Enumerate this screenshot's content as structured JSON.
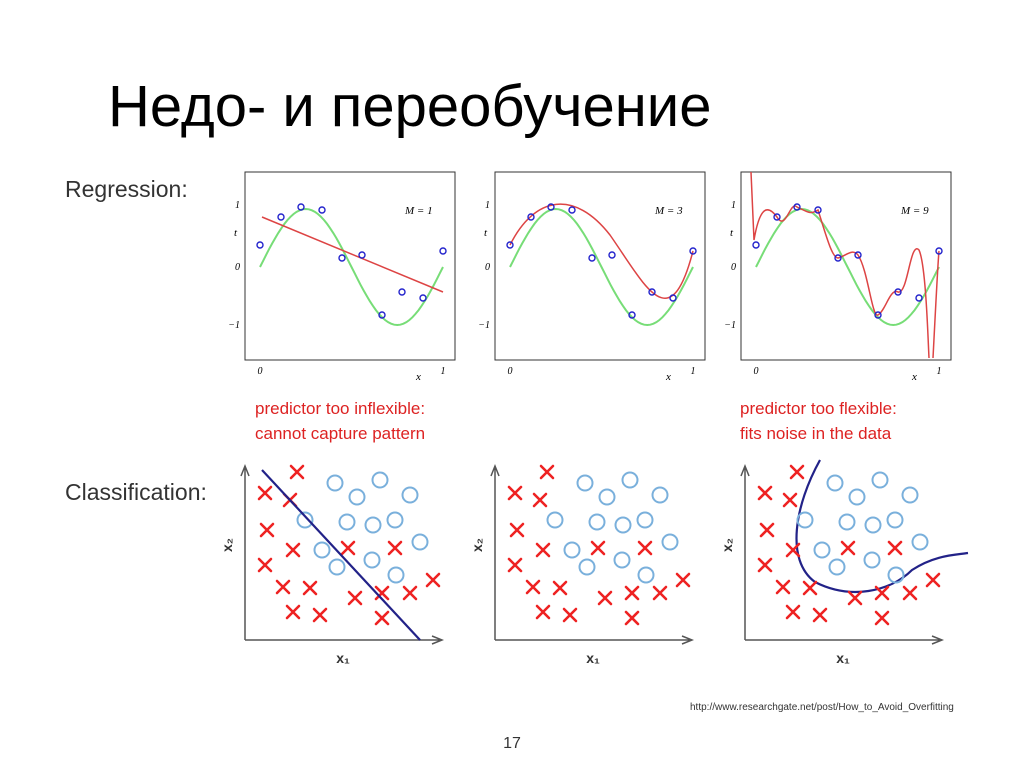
{
  "title": "Недо- и переобучение",
  "regression": {
    "label": "Regression:",
    "panels": [
      {
        "model": "M = 1",
        "y_label": "t",
        "x_label": "x",
        "y_ticks": [
          "1",
          "0",
          "−1"
        ],
        "x_ticks": [
          "0",
          "1"
        ]
      },
      {
        "model": "M = 3",
        "y_label": "t",
        "x_label": "x",
        "y_ticks": [
          "1",
          "0",
          "−1"
        ],
        "x_ticks": [
          "0",
          "1"
        ]
      },
      {
        "model": "M = 9",
        "y_label": "t",
        "x_label": "x",
        "y_ticks": [
          "1",
          "0",
          "−1"
        ],
        "x_ticks": [
          "0",
          "1"
        ]
      }
    ],
    "note_left": [
      "predictor too inflexible:",
      "cannot capture pattern"
    ],
    "note_right": [
      "predictor too flexible:",
      "fits noise in the data"
    ]
  },
  "classification": {
    "label": "Classification:",
    "panels": [
      {
        "y_label": "x₂",
        "x_label": "x₁"
      },
      {
        "y_label": "x₂",
        "x_label": "x₁"
      },
      {
        "y_label": "x₂",
        "x_label": "x₁"
      }
    ]
  },
  "source": "http://www.researchgate.net/post/How_to_Avoid_Overfitting",
  "page_number": "17"
}
